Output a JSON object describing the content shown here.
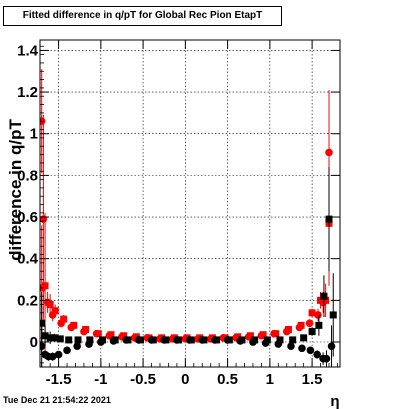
{
  "title": "Fitted difference in q/pT for Global Rec Pion EtapT",
  "timestamp": "Tue Dec 21 21:54:22 2021",
  "chart_data": {
    "type": "scatter",
    "title": "Fitted difference in q/pT for Global Rec Pion EtapT",
    "xlabel": "η",
    "ylabel": "difference in q/pT",
    "xlim": [
      -1.72,
      1.83
    ],
    "ylim": [
      -0.12,
      1.45
    ],
    "xticks": [
      "-1.5",
      "-1",
      "-0.5",
      "0",
      "0.5",
      "1",
      "1.5"
    ],
    "yticks": [
      "0",
      "0.2",
      "0.4",
      "0.6",
      "0.8",
      "1",
      "1.2",
      "1.4"
    ],
    "grid": true,
    "series": [
      {
        "marker": "circle",
        "color": "#ff0000",
        "x": [
          -1.7,
          -1.68,
          -1.63,
          -1.57,
          -1.47,
          -1.35,
          -1.2,
          -1.05,
          -0.9,
          -0.75,
          -0.6,
          -0.45,
          -0.3,
          -0.15,
          0,
          0.15,
          0.3,
          0.45,
          0.6,
          0.75,
          0.9,
          1.05,
          1.2,
          1.35,
          1.47,
          1.57,
          1.63,
          1.7
        ],
        "y": [
          1.06,
          0.59,
          0.19,
          0.13,
          0.09,
          0.07,
          0.05,
          0.04,
          0.03,
          0.025,
          0.02,
          0.02,
          0.015,
          0.015,
          0.015,
          0.015,
          0.015,
          0.02,
          0.02,
          0.025,
          0.03,
          0.04,
          0.05,
          0.07,
          0.09,
          0.13,
          0.19,
          0.91
        ],
        "err": [
          0.25,
          0.5,
          0.05,
          0.03,
          0.02,
          0.01,
          0.01,
          0,
          0,
          0,
          0,
          0,
          0,
          0,
          0,
          0,
          0,
          0,
          0,
          0,
          0,
          0,
          0.01,
          0.01,
          0.02,
          0.03,
          0.05,
          0.3
        ]
      },
      {
        "marker": "square",
        "color": "#ff0000",
        "x": [
          -1.7,
          -1.66,
          -1.6,
          -1.54,
          -1.44,
          -1.32,
          -1.18,
          -1.03,
          -0.88,
          -0.73,
          -0.58,
          -0.43,
          -0.28,
          -0.13,
          0.02,
          0.17,
          0.32,
          0.47,
          0.62,
          0.77,
          0.92,
          1.07,
          1.22,
          1.37,
          1.5,
          1.6,
          1.66,
          1.7
        ],
        "y": [
          0.26,
          0.27,
          0.18,
          0.15,
          0.11,
          0.08,
          0.06,
          0.04,
          0.035,
          0.03,
          0.025,
          0.02,
          0.02,
          0.02,
          0.02,
          0.02,
          0.02,
          0.02,
          0.025,
          0.03,
          0.035,
          0.04,
          0.06,
          0.08,
          0.14,
          0.2,
          0.2,
          0.57
        ],
        "err": [
          0.3,
          0.35,
          0.05,
          0.03,
          0.02,
          0.01,
          0.01,
          0,
          0,
          0,
          0,
          0,
          0,
          0,
          0,
          0,
          0,
          0,
          0,
          0,
          0,
          0,
          0.01,
          0.01,
          0.02,
          0.04,
          0.08,
          0.3
        ]
      },
      {
        "marker": "circle",
        "color": "#000000",
        "x": [
          -1.7,
          -1.66,
          -1.62,
          -1.57,
          -1.5,
          -1.4,
          -1.28,
          -1.14,
          -1.0,
          -0.85,
          -0.7,
          -0.55,
          -0.4,
          -0.25,
          -0.1,
          0.05,
          0.2,
          0.35,
          0.5,
          0.65,
          0.8,
          0.95,
          1.1,
          1.25,
          1.38,
          1.48,
          1.56,
          1.63,
          1.67,
          1.73
        ],
        "y": [
          -0.02,
          -0.06,
          -0.07,
          -0.07,
          -0.06,
          -0.04,
          -0.02,
          -0.01,
          0.0,
          0.005,
          0.01,
          0.01,
          0.01,
          0.01,
          0.01,
          0.01,
          0.01,
          0.01,
          0.01,
          0.005,
          0.0,
          -0.005,
          -0.01,
          -0.02,
          -0.03,
          -0.04,
          -0.06,
          -0.08,
          -0.08,
          -0.02
        ],
        "err": [
          0.1,
          0.02,
          0.02,
          0.02,
          0.01,
          0.01,
          0.01,
          0,
          0,
          0,
          0,
          0,
          0,
          0,
          0,
          0,
          0,
          0,
          0,
          0,
          0,
          0,
          0,
          0.01,
          0.01,
          0.01,
          0.02,
          0.03,
          0.04,
          0.1
        ]
      },
      {
        "marker": "square",
        "color": "#000000",
        "x": [
          -1.7,
          -1.66,
          -1.6,
          -1.55,
          -1.48,
          -1.38,
          -1.27,
          -1.13,
          -0.98,
          -0.83,
          -0.68,
          -0.53,
          -0.38,
          -0.23,
          -0.08,
          0.07,
          0.22,
          0.37,
          0.52,
          0.67,
          0.82,
          0.97,
          1.12,
          1.27,
          1.4,
          1.5,
          1.58,
          1.64,
          1.7,
          1.75
        ],
        "y": [
          0.09,
          0.03,
          0.02,
          0.02,
          0.015,
          0.01,
          0.01,
          0.01,
          0.01,
          0.01,
          0.01,
          0.01,
          0.01,
          0.01,
          0.01,
          0.01,
          0.01,
          0.01,
          0.01,
          0.01,
          0.01,
          0.01,
          0.01,
          0.01,
          0.02,
          0.05,
          0.08,
          0.22,
          0.59,
          0.13
        ],
        "err": [
          0.15,
          0.05,
          0.03,
          0.02,
          0.01,
          0.01,
          0,
          0,
          0,
          0,
          0,
          0,
          0,
          0,
          0,
          0,
          0,
          0,
          0,
          0,
          0,
          0,
          0,
          0.01,
          0.01,
          0.02,
          0.05,
          0.1,
          0.25,
          0.2
        ]
      }
    ]
  }
}
